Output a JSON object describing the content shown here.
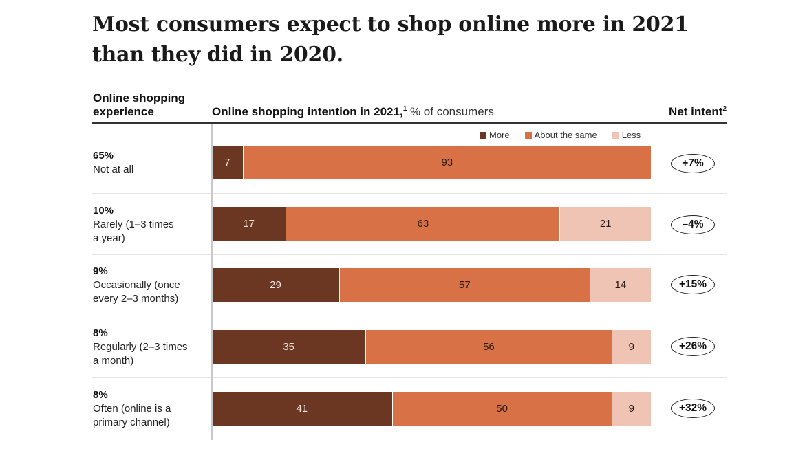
{
  "title_lines": [
    "Most consumers expect to shop online more in 2021",
    "than they did in 2020."
  ],
  "header": {
    "left_lines": [
      "Online shopping",
      "experience"
    ],
    "mid_bold": "Online shopping intention in 2021,",
    "mid_sup": "1",
    "mid_unit": " % of consumers",
    "right": "Net intent",
    "right_sup": "2"
  },
  "legend": [
    {
      "label": "More",
      "color": "#6b3722"
    },
    {
      "label": "About the same",
      "color": "#d97146"
    },
    {
      "label": "Less",
      "color": "#efc4b5"
    }
  ],
  "chart_data": {
    "type": "bar",
    "orientation": "horizontal-stacked",
    "title": "Most consumers expect to shop online more in 2021 than they did in 2020.",
    "xlabel": "Online shopping intention in 2021, % of consumers",
    "ylabel": "Online shopping experience",
    "xlim": [
      0,
      100
    ],
    "grid": false,
    "legend_position": "top-right",
    "categories": [
      {
        "share": "65%",
        "label_lines": [
          "Not at all"
        ]
      },
      {
        "share": "10%",
        "label_lines": [
          "Rarely (1–3 times",
          "a year)"
        ]
      },
      {
        "share": "9%",
        "label_lines": [
          "Occasionally (once",
          "every 2–3 months)"
        ]
      },
      {
        "share": "8%",
        "label_lines": [
          "Regularly (2–3 times",
          "a month)"
        ]
      },
      {
        "share": "8%",
        "label_lines": [
          "Often (online is a",
          "primary channel)"
        ]
      }
    ],
    "series": [
      {
        "name": "More",
        "color": "#6b3722",
        "text_color": "#f3e6df",
        "values": [
          7,
          17,
          29,
          35,
          41
        ]
      },
      {
        "name": "About the same",
        "color": "#d97146",
        "text_color": "#2a1a12",
        "values": [
          93,
          63,
          57,
          56,
          50
        ]
      },
      {
        "name": "Less",
        "color": "#efc4b5",
        "text_color": "#2a1a12",
        "values": [
          0,
          21,
          14,
          9,
          9
        ]
      }
    ],
    "net_intent": [
      "+7%",
      "–4%",
      "+15%",
      "+26%",
      "+32%"
    ]
  }
}
